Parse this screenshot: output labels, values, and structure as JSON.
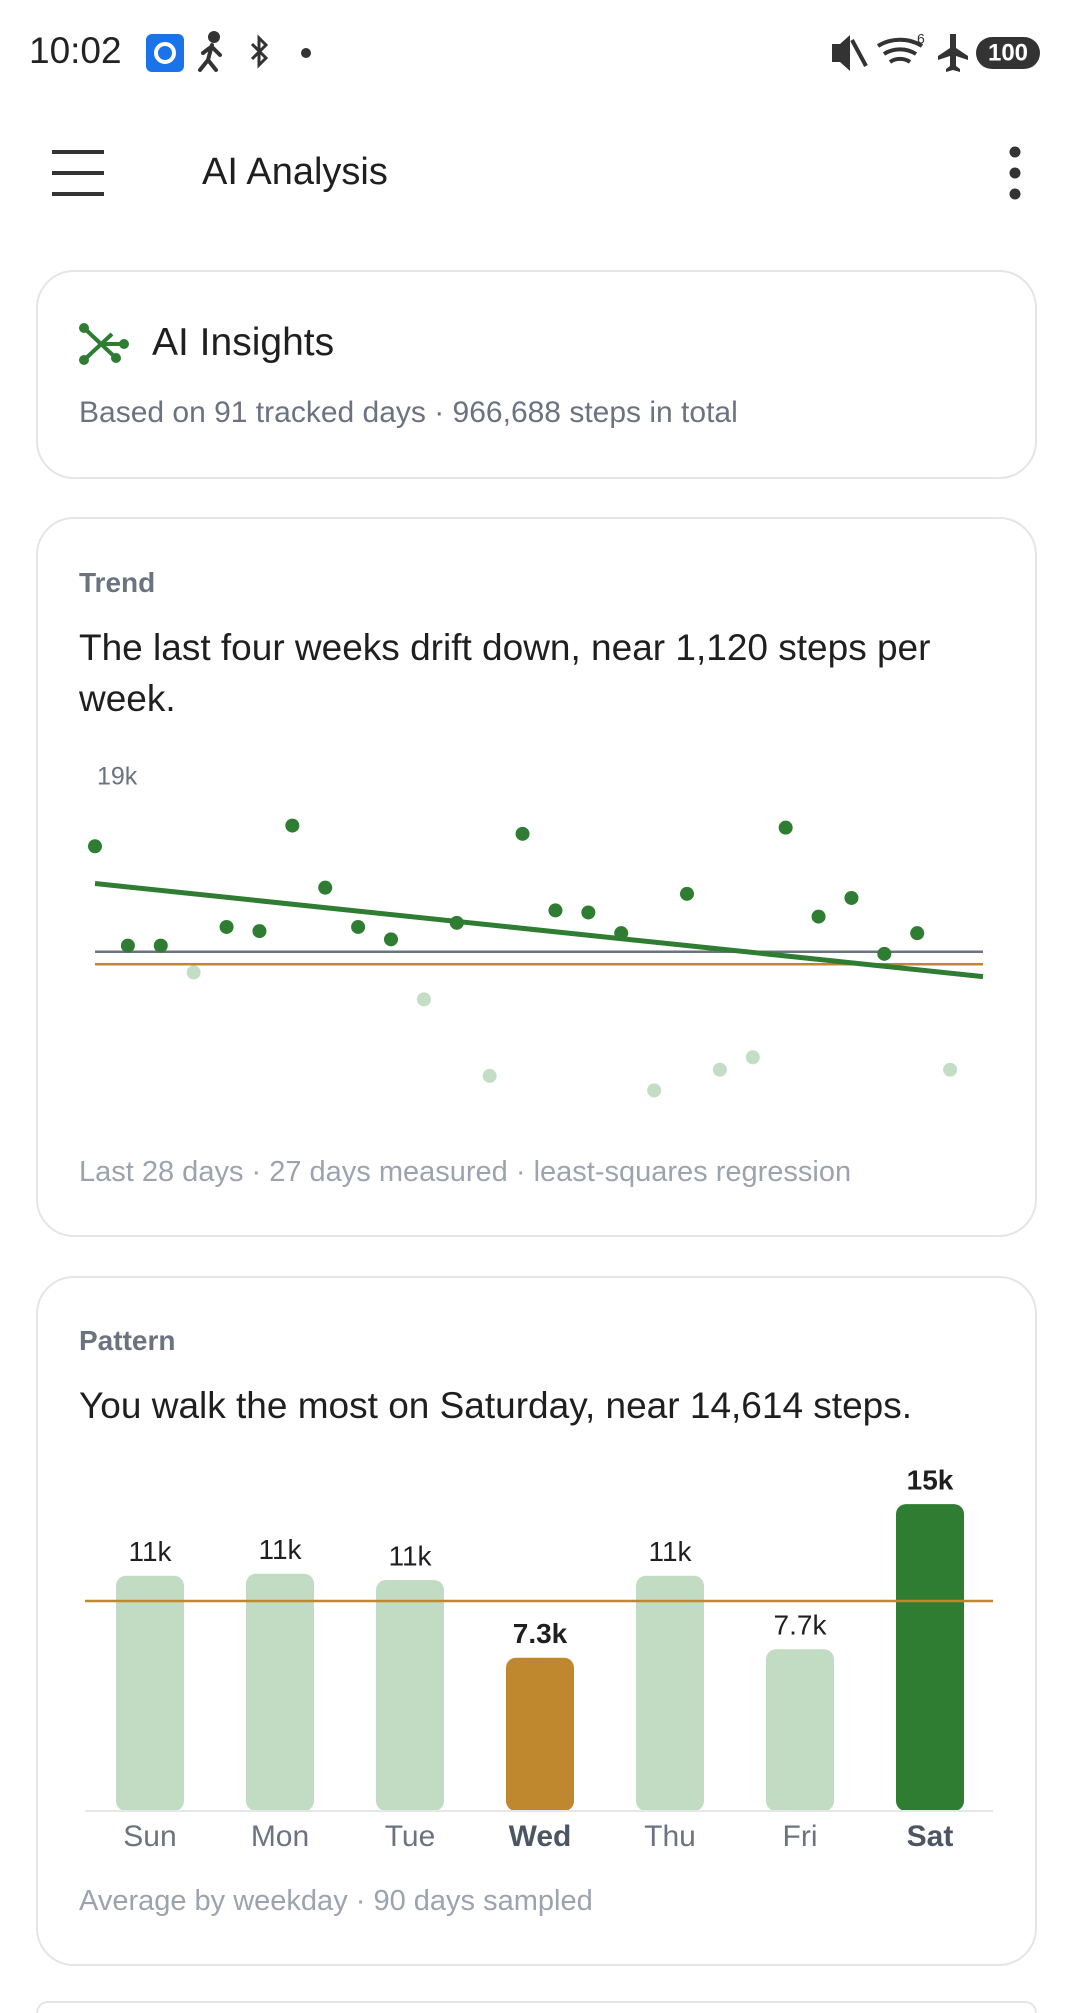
{
  "status_bar": {
    "time": "10:02",
    "network": "6",
    "battery": "100"
  },
  "app_bar": {
    "title": "AI Analysis"
  },
  "insights": {
    "title": "AI Insights",
    "subtitle": "Based on 91 tracked days · 966,688 steps in total"
  },
  "trend_card": {
    "label": "Trend",
    "headline": "The last four weeks drift down, near 1,120 steps per week.",
    "footer": "Last 28 days · 27 days measured · least-squares regression"
  },
  "pattern_card": {
    "label": "Pattern",
    "headline": "You walk the most on Saturday, near 14,614 steps.",
    "footer": "Average by weekday · 90 days sampled"
  },
  "chart_data": [
    {
      "type": "scatter",
      "values": [
        15700,
        10900,
        10900,
        9600,
        11800,
        11600,
        16700,
        13700,
        11800,
        11200,
        8300,
        12000,
        4600,
        16300,
        12600,
        12500,
        11500,
        3900,
        13400,
        4900,
        5500,
        16600,
        12300,
        13200,
        10500,
        11500,
        4900,
        null
      ],
      "color": "#2e7d32",
      "below_goal_color": "#c3dec4",
      "trend": {
        "start": 13900,
        "end": 9400,
        "color": "#2e7d32"
      },
      "average": 10600,
      "average_color": "#6b7280",
      "goal": 10000,
      "goal_color": "#c0882e",
      "ylim": [
        3000,
        19000
      ],
      "yticks": [
        {
          "value": 19000,
          "label": "19k"
        }
      ],
      "grid": false
    },
    {
      "type": "bar",
      "categories": [
        "Sun",
        "Mon",
        "Tue",
        "Wed",
        "Thu",
        "Fri",
        "Sat"
      ],
      "values": [
        11200,
        11300,
        11000,
        7300,
        11200,
        7700,
        14614
      ],
      "value_labels": [
        "11k",
        "11k",
        "11k",
        "7.3k",
        "11k",
        "7.7k",
        "15k"
      ],
      "color": "#c2dcc3",
      "high_color": "#2e7d32",
      "low_color": "#c0882e",
      "goal": 10000,
      "goal_color": "#c0882e",
      "ylim": [
        0,
        15000
      ]
    }
  ]
}
